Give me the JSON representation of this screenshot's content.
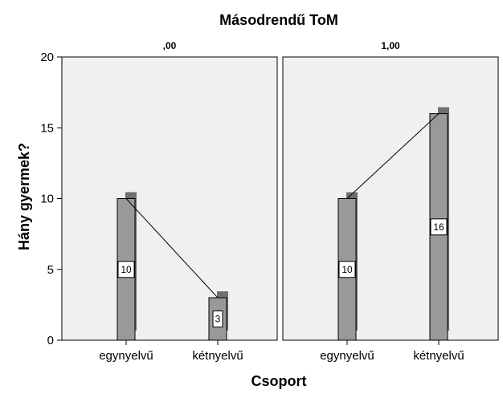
{
  "chart_data": {
    "type": "bar",
    "title": "Másodrendű ToM",
    "xlabel": "Csoport",
    "ylabel": "Hány gyermek?",
    "ylim": [
      0,
      20
    ],
    "yticks": [
      0,
      5,
      10,
      15,
      20
    ],
    "categories": [
      "egynyelvű",
      "kétnyelvű"
    ],
    "panels": [
      {
        "label": ",00",
        "values": [
          10,
          3
        ]
      },
      {
        "label": "1,00",
        "values": [
          10,
          16
        ]
      }
    ],
    "bar_color": "#999999",
    "shadow_color": "#6f6f6f",
    "panel_background": "#f0f0f0",
    "grid": false
  }
}
